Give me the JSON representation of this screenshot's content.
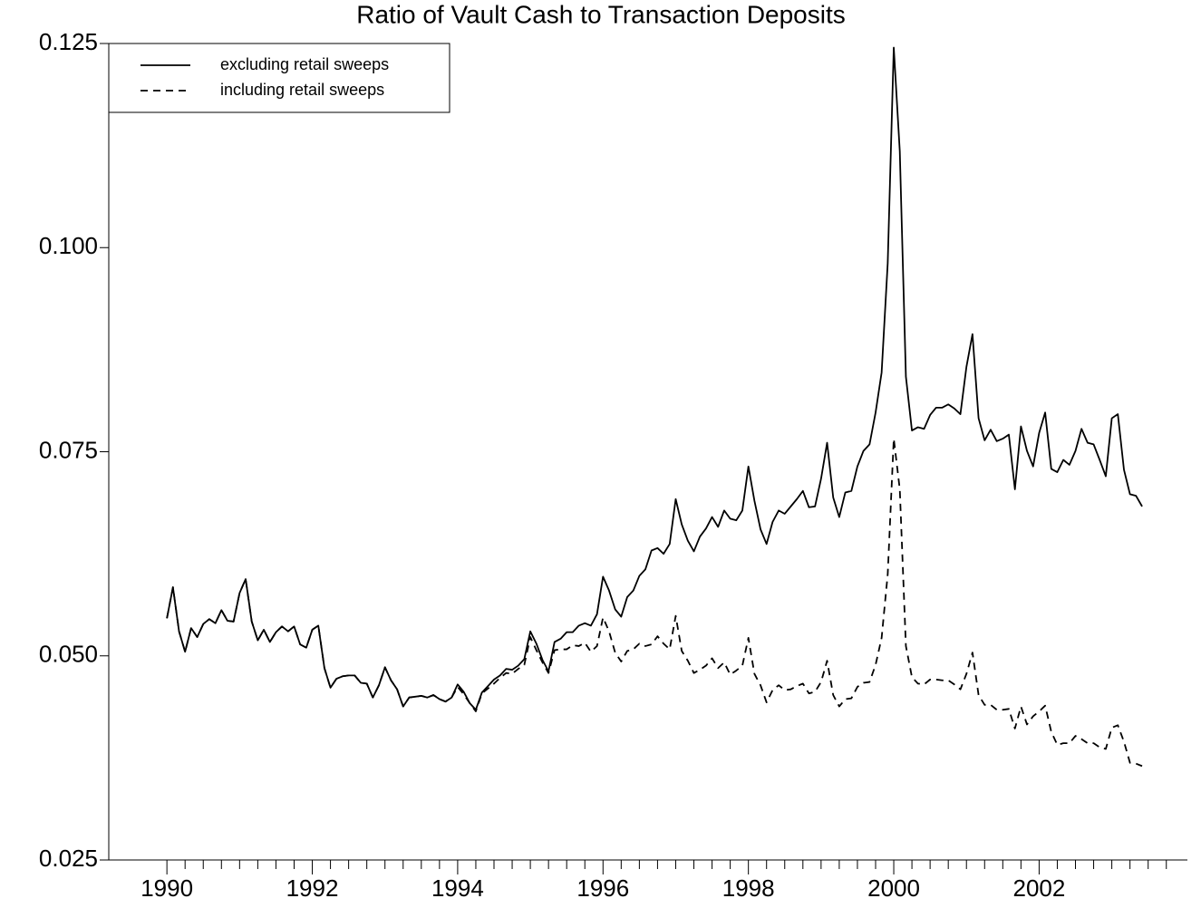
{
  "chart_data": {
    "type": "line",
    "title": "Ratio of Vault Cash to Transaction Deposits",
    "x": [
      1990,
      1990.083,
      1990.167,
      1990.25,
      1990.333,
      1990.417,
      1990.5,
      1990.583,
      1990.667,
      1990.75,
      1990.833,
      1990.917,
      1991,
      1991.083,
      1991.167,
      1991.25,
      1991.333,
      1991.417,
      1991.5,
      1991.583,
      1991.667,
      1991.75,
      1991.833,
      1991.917,
      1992,
      1992.083,
      1992.167,
      1992.25,
      1992.333,
      1992.417,
      1992.5,
      1992.583,
      1992.667,
      1992.75,
      1992.833,
      1992.917,
      1993,
      1993.083,
      1993.167,
      1993.25,
      1993.333,
      1993.417,
      1993.5,
      1993.583,
      1993.667,
      1993.75,
      1993.833,
      1993.917,
      1994,
      1994.083,
      1994.167,
      1994.25,
      1994.333,
      1994.417,
      1994.5,
      1994.583,
      1994.667,
      1994.75,
      1994.833,
      1994.917,
      1995,
      1995.083,
      1995.167,
      1995.25,
      1995.333,
      1995.417,
      1995.5,
      1995.583,
      1995.667,
      1995.75,
      1995.833,
      1995.917,
      1996,
      1996.083,
      1996.167,
      1996.25,
      1996.333,
      1996.417,
      1996.5,
      1996.583,
      1996.667,
      1996.75,
      1996.833,
      1996.917,
      1997,
      1997.083,
      1997.167,
      1997.25,
      1997.333,
      1997.417,
      1997.5,
      1997.583,
      1997.667,
      1997.75,
      1997.833,
      1997.917,
      1998,
      1998.083,
      1998.167,
      1998.25,
      1998.333,
      1998.417,
      1998.5,
      1998.583,
      1998.667,
      1998.75,
      1998.833,
      1998.917,
      1999,
      1999.083,
      1999.167,
      1999.25,
      1999.333,
      1999.417,
      1999.5,
      1999.583,
      1999.667,
      1999.75,
      1999.833,
      1999.917,
      2000,
      2000.083,
      2000.167,
      2000.25,
      2000.333,
      2000.417,
      2000.5,
      2000.583,
      2000.667,
      2000.75,
      2000.833,
      2000.917,
      2001,
      2001.083,
      2001.167,
      2001.25,
      2001.333,
      2001.417,
      2001.5,
      2001.583,
      2001.667,
      2001.75,
      2001.833,
      2001.917,
      2002,
      2002.083,
      2002.167,
      2002.25,
      2002.333,
      2002.417,
      2002.5,
      2002.583,
      2002.667,
      2002.75,
      2002.833,
      2002.917,
      2003,
      2003.083,
      2003.167,
      2003.25,
      2003.333,
      2003.417
    ],
    "series": [
      {
        "name": "excluding retail sweeps",
        "color": "#000000",
        "linestyle": "solid",
        "values": [
          0.0546,
          0.0584,
          0.053,
          0.0505,
          0.0534,
          0.0523,
          0.0539,
          0.0545,
          0.054,
          0.0556,
          0.0543,
          0.0542,
          0.0577,
          0.0594,
          0.0542,
          0.0519,
          0.0532,
          0.0517,
          0.0529,
          0.0536,
          0.053,
          0.0536,
          0.0514,
          0.051,
          0.0532,
          0.0537,
          0.0485,
          0.0461,
          0.0472,
          0.0475,
          0.0476,
          0.0476,
          0.0467,
          0.0466,
          0.0449,
          0.0464,
          0.0486,
          0.047,
          0.0459,
          0.0438,
          0.0449,
          0.045,
          0.0451,
          0.0449,
          0.0452,
          0.0447,
          0.0444,
          0.0449,
          0.0465,
          0.0456,
          0.0442,
          0.0434,
          0.0455,
          0.0463,
          0.0471,
          0.0476,
          0.0484,
          0.0483,
          0.0488,
          0.0496,
          0.053,
          0.0515,
          0.0495,
          0.0481,
          0.0517,
          0.0521,
          0.0529,
          0.0529,
          0.0537,
          0.054,
          0.0537,
          0.0551,
          0.0597,
          0.058,
          0.0557,
          0.0548,
          0.0572,
          0.058,
          0.0598,
          0.0606,
          0.0629,
          0.0632,
          0.0625,
          0.0637,
          0.0692,
          0.0661,
          0.0641,
          0.0628,
          0.0646,
          0.0656,
          0.067,
          0.0658,
          0.0678,
          0.0668,
          0.0666,
          0.0678,
          0.0732,
          0.069,
          0.0655,
          0.0637,
          0.0664,
          0.0678,
          0.0674,
          0.0683,
          0.0692,
          0.0702,
          0.0682,
          0.0683,
          0.0717,
          0.0761,
          0.0694,
          0.067,
          0.07,
          0.0702,
          0.0732,
          0.0751,
          0.0759,
          0.0798,
          0.0847,
          0.0981,
          0.1245,
          0.1118,
          0.0842,
          0.0776,
          0.078,
          0.0778,
          0.0795,
          0.0804,
          0.0804,
          0.0808,
          0.0803,
          0.0796,
          0.0854,
          0.0894,
          0.0791,
          0.0764,
          0.0777,
          0.0763,
          0.0766,
          0.0771,
          0.0704,
          0.0781,
          0.0751,
          0.0732,
          0.0773,
          0.0798,
          0.0729,
          0.0725,
          0.074,
          0.0734,
          0.0751,
          0.0778,
          0.0761,
          0.0759,
          0.074,
          0.072,
          0.0791,
          0.0796,
          0.0728,
          0.0698,
          0.0696,
          0.0683
        ]
      },
      {
        "name": "including retail sweeps",
        "color": "#000000",
        "linestyle": "dashed",
        "values": [
          0.0546,
          0.0584,
          0.053,
          0.0505,
          0.0534,
          0.0523,
          0.0539,
          0.0545,
          0.054,
          0.0556,
          0.0543,
          0.0542,
          0.0577,
          0.0594,
          0.0542,
          0.0519,
          0.0532,
          0.0517,
          0.0529,
          0.0536,
          0.053,
          0.0536,
          0.0514,
          0.051,
          0.0532,
          0.0537,
          0.0485,
          0.0461,
          0.0472,
          0.0475,
          0.0476,
          0.0476,
          0.0467,
          0.0466,
          0.0449,
          0.0464,
          0.0486,
          0.047,
          0.0459,
          0.0438,
          0.0449,
          0.045,
          0.0451,
          0.0449,
          0.0452,
          0.0447,
          0.0444,
          0.0449,
          0.0462,
          0.0453,
          0.0442,
          0.0432,
          0.0454,
          0.046,
          0.0466,
          0.0473,
          0.0479,
          0.0478,
          0.0484,
          0.0489,
          0.0523,
          0.0507,
          0.0492,
          0.0479,
          0.0507,
          0.0508,
          0.0508,
          0.0513,
          0.0512,
          0.0516,
          0.0505,
          0.0512,
          0.0547,
          0.053,
          0.0504,
          0.0493,
          0.0506,
          0.0508,
          0.0515,
          0.0512,
          0.0514,
          0.0524,
          0.0515,
          0.0508,
          0.0549,
          0.0506,
          0.0494,
          0.0479,
          0.0483,
          0.0488,
          0.0497,
          0.0485,
          0.0492,
          0.0477,
          0.0482,
          0.0488,
          0.0522,
          0.0478,
          0.0464,
          0.0443,
          0.0458,
          0.0464,
          0.0458,
          0.0459,
          0.0463,
          0.0466,
          0.0454,
          0.0456,
          0.0468,
          0.0494,
          0.0452,
          0.0438,
          0.0447,
          0.0448,
          0.0462,
          0.0467,
          0.0468,
          0.0489,
          0.0522,
          0.06,
          0.0766,
          0.0704,
          0.0512,
          0.0474,
          0.0466,
          0.0465,
          0.0471,
          0.0471,
          0.047,
          0.047,
          0.0465,
          0.0459,
          0.0478,
          0.0504,
          0.0452,
          0.044,
          0.044,
          0.0434,
          0.0434,
          0.0435,
          0.0411,
          0.0438,
          0.0416,
          0.0426,
          0.0432,
          0.0439,
          0.0407,
          0.0391,
          0.0393,
          0.0393,
          0.0402,
          0.0398,
          0.0393,
          0.0393,
          0.0388,
          0.0386,
          0.0412,
          0.0415,
          0.0395,
          0.0369,
          0.0368,
          0.0365
        ]
      }
    ],
    "xlim": [
      1989.2,
      2004.04
    ],
    "xticks": [
      1990,
      1992,
      1994,
      1996,
      1998,
      2000,
      2002
    ],
    "xminorticks": [
      1990.25,
      1990.5,
      1990.75,
      1991,
      1991.25,
      1991.5,
      1991.75,
      1992.25,
      1992.5,
      1992.75,
      1993,
      1993.25,
      1993.5,
      1993.75,
      1994.25,
      1994.5,
      1994.75,
      1995,
      1995.25,
      1995.5,
      1995.75,
      1996.25,
      1996.5,
      1996.75,
      1997,
      1997.25,
      1997.5,
      1997.75,
      1998.25,
      1998.5,
      1998.75,
      1999,
      1999.25,
      1999.5,
      1999.75,
      2000.25,
      2000.5,
      2000.75,
      2001,
      2001.25,
      2001.5,
      2001.75,
      2002.25,
      2002.5,
      2002.75,
      2003,
      2003.25,
      2003.5,
      2003.75
    ],
    "ylim": [
      0.025,
      0.125
    ],
    "yticks": [
      0.025,
      {
        "value": 0.05,
        "label": "0.050"
      },
      0.075,
      {
        "value": 0.1,
        "label": "0.100"
      },
      0.125
    ],
    "legend": "upper left",
    "grid": false
  }
}
